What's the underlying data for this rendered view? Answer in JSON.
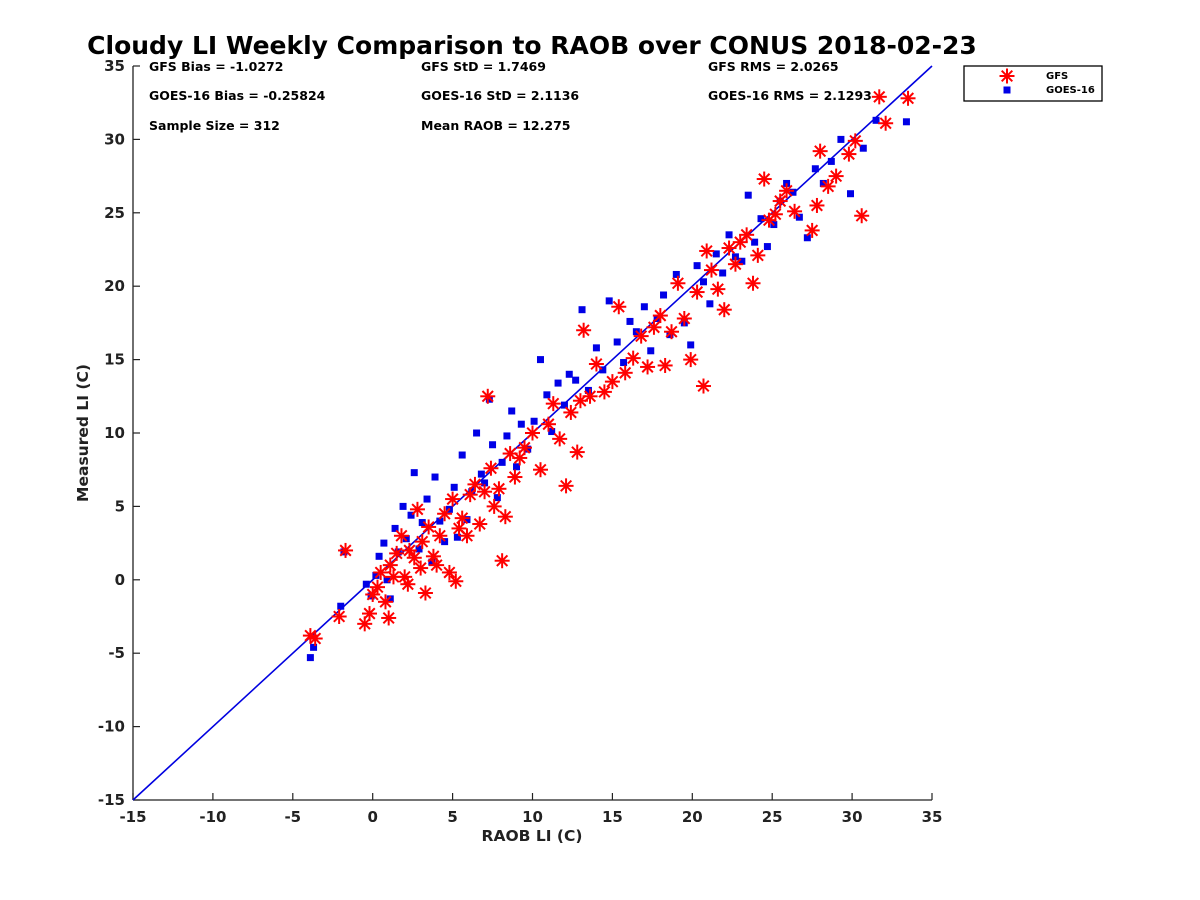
{
  "chart_data": {
    "type": "scatter",
    "title": "Cloudy LI Weekly Comparison to RAOB over CONUS 2018-02-23",
    "xlabel": "RAOB LI (C)",
    "ylabel": "Measured LI (C)",
    "xlim": [
      -15,
      35
    ],
    "ylim": [
      -15,
      35
    ],
    "xticks": [
      "-15",
      "-10",
      "-5",
      "0",
      "5",
      "10",
      "15",
      "20",
      "25",
      "30",
      "35"
    ],
    "yticks": [
      "-15",
      "-10",
      "-5",
      "0",
      "5",
      "10",
      "15",
      "20",
      "25",
      "30",
      "35"
    ],
    "grid": false,
    "legend_position": "outside-top-right",
    "reference_line": {
      "from": [
        -15,
        -15
      ],
      "to": [
        35,
        35
      ],
      "color": "#0000e0"
    },
    "stats": [
      "GFS Bias = -1.0272",
      "GFS StD = 1.7469",
      "GFS RMS = 2.0265",
      "GOES-16 Bias = -0.25824",
      "GOES-16 StD = 2.1136",
      "GOES-16 RMS = 2.1293",
      "Sample Size = 312",
      "Mean RAOB = 12.275"
    ],
    "series": [
      {
        "name": "GFS",
        "marker": "asterisk",
        "color": "#ff0000",
        "x": [
          -3.9,
          -3.6,
          -2.1,
          -1.7,
          -0.5,
          -0.2,
          0.0,
          0.3,
          0.5,
          0.8,
          1.0,
          1.1,
          1.3,
          1.5,
          1.8,
          2.0,
          2.2,
          2.3,
          2.6,
          2.8,
          3.0,
          3.1,
          3.3,
          3.5,
          3.8,
          4.0,
          4.2,
          4.5,
          4.8,
          5.0,
          5.2,
          5.4,
          5.6,
          5.9,
          6.1,
          6.4,
          6.7,
          7.0,
          7.2,
          7.4,
          7.6,
          7.9,
          8.1,
          8.3,
          8.6,
          8.9,
          9.2,
          9.5,
          10.0,
          10.5,
          11.0,
          11.3,
          11.7,
          12.1,
          12.4,
          12.8,
          13.0,
          13.2,
          13.6,
          14.0,
          14.5,
          15.0,
          15.4,
          15.8,
          16.3,
          16.8,
          17.2,
          17.6,
          18.0,
          18.3,
          18.7,
          19.1,
          19.5,
          19.9,
          20.3,
          20.7,
          20.9,
          21.2,
          21.6,
          22.0,
          22.3,
          22.7,
          23.0,
          23.4,
          23.8,
          24.1,
          24.5,
          24.8,
          25.2,
          25.5,
          25.9,
          26.4,
          27.5,
          27.8,
          28.0,
          28.5,
          29.0,
          29.8,
          30.2,
          30.6,
          31.7,
          32.1,
          33.5
        ],
        "y": [
          -3.8,
          -4.0,
          -2.5,
          2.0,
          -3.0,
          -2.3,
          -1.0,
          -0.5,
          0.5,
          -1.5,
          -2.6,
          1.0,
          0.2,
          1.8,
          3.0,
          0.2,
          -0.3,
          2.0,
          1.5,
          4.8,
          0.8,
          2.6,
          -0.9,
          3.6,
          1.6,
          1.0,
          3.0,
          4.5,
          0.5,
          5.5,
          -0.1,
          3.5,
          4.2,
          3.0,
          5.8,
          6.5,
          3.8,
          6.0,
          12.5,
          7.6,
          5.0,
          6.2,
          1.3,
          4.3,
          8.6,
          7.0,
          8.3,
          9.0,
          10.0,
          7.5,
          10.6,
          12.0,
          9.6,
          6.4,
          11.4,
          8.7,
          12.2,
          17.0,
          12.5,
          14.7,
          12.8,
          13.5,
          18.6,
          14.1,
          15.1,
          16.6,
          14.5,
          17.2,
          18.0,
          14.6,
          16.9,
          20.2,
          17.8,
          15.0,
          19.6,
          13.2,
          22.4,
          21.1,
          19.8,
          18.4,
          22.6,
          21.5,
          23.0,
          23.5,
          20.2,
          22.1,
          27.3,
          24.5,
          24.9,
          25.8,
          26.5,
          25.1,
          23.8,
          25.5,
          29.2,
          26.8,
          27.5,
          29.0,
          29.9,
          24.8,
          32.9,
          31.1,
          32.8
        ]
      },
      {
        "name": "GOES-16",
        "marker": "square",
        "color": "#0000e6",
        "x": [
          -3.9,
          -3.7,
          -2.0,
          -1.8,
          -0.4,
          -0.1,
          0.2,
          0.4,
          0.7,
          0.9,
          1.1,
          1.4,
          1.6,
          1.9,
          2.1,
          2.4,
          2.6,
          2.9,
          3.1,
          3.4,
          3.7,
          3.9,
          4.2,
          4.5,
          4.8,
          5.1,
          5.3,
          5.6,
          5.9,
          6.2,
          6.5,
          6.8,
          7.0,
          7.3,
          7.5,
          7.8,
          8.1,
          8.4,
          8.7,
          9.0,
          9.3,
          9.7,
          10.1,
          10.5,
          10.9,
          11.2,
          11.6,
          12.0,
          12.3,
          12.7,
          13.1,
          13.5,
          14.0,
          14.4,
          14.8,
          15.3,
          15.7,
          16.1,
          16.5,
          17.0,
          17.4,
          17.8,
          18.2,
          18.6,
          19.0,
          19.5,
          19.9,
          20.3,
          20.7,
          21.1,
          21.5,
          21.9,
          22.3,
          22.7,
          23.1,
          23.5,
          23.9,
          24.3,
          24.7,
          25.1,
          25.5,
          25.9,
          26.3,
          26.7,
          27.2,
          27.7,
          28.2,
          28.7,
          29.3,
          29.9,
          30.7,
          31.5,
          33.4
        ],
        "y": [
          -5.3,
          -4.6,
          -1.8,
          1.9,
          -0.3,
          -1.1,
          0.3,
          1.6,
          2.5,
          0.0,
          -1.3,
          3.5,
          1.9,
          5.0,
          2.8,
          4.4,
          7.3,
          2.1,
          3.9,
          5.5,
          1.2,
          7.0,
          4.0,
          2.6,
          4.8,
          6.3,
          2.9,
          8.5,
          4.1,
          6.0,
          10.0,
          7.2,
          6.6,
          12.3,
          9.2,
          5.6,
          8.0,
          9.8,
          11.5,
          7.7,
          10.6,
          8.9,
          10.8,
          15.0,
          12.6,
          10.1,
          13.4,
          11.9,
          14.0,
          13.6,
          18.4,
          12.9,
          15.8,
          14.3,
          19.0,
          16.2,
          14.8,
          17.6,
          16.9,
          18.6,
          15.6,
          17.8,
          19.4,
          16.7,
          20.8,
          17.5,
          16.0,
          21.4,
          20.3,
          18.8,
          22.2,
          20.9,
          23.5,
          22.0,
          21.7,
          26.2,
          23.0,
          24.6,
          22.7,
          24.2,
          25.8,
          27.0,
          26.4,
          24.7,
          23.3,
          28.0,
          27.0,
          28.5,
          30.0,
          26.3,
          29.4,
          31.3,
          31.2
        ]
      }
    ]
  }
}
